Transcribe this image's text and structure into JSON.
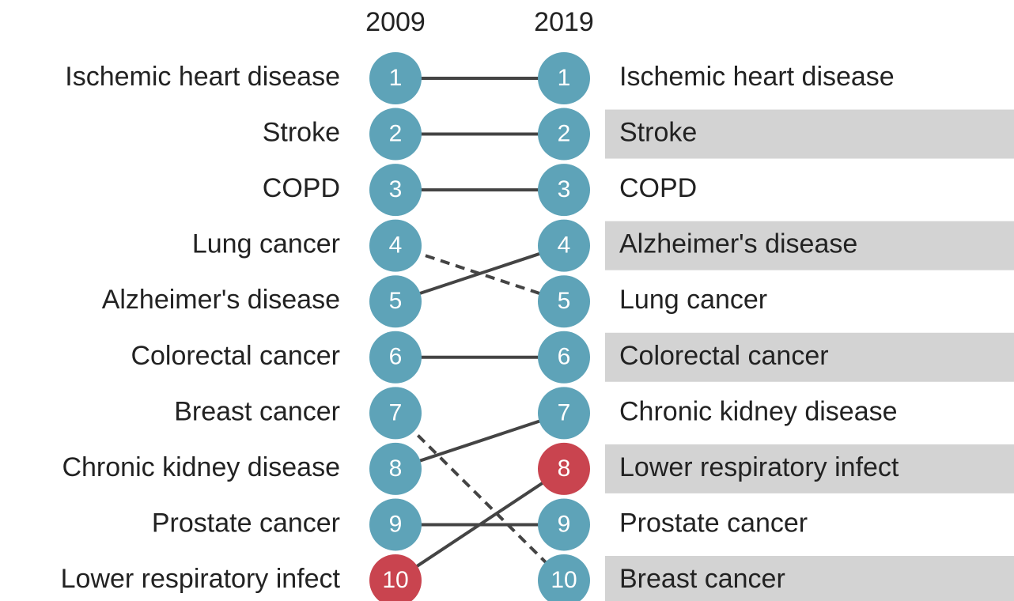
{
  "chart_data": {
    "type": "bump",
    "x": [
      "2009",
      "2019"
    ],
    "ylim": [
      1,
      10
    ],
    "y_reversed": true,
    "line_color": "#444444",
    "band_color": "#d3d3d3",
    "series": [
      {
        "name": "Ischemic heart disease",
        "color": "#5ea3b8",
        "values": [
          1,
          1
        ]
      },
      {
        "name": "Stroke",
        "color": "#5ea3b8",
        "values": [
          2,
          2
        ]
      },
      {
        "name": "COPD",
        "color": "#5ea3b8",
        "values": [
          3,
          3
        ]
      },
      {
        "name": "Lung cancer",
        "color": "#5ea3b8",
        "values": [
          4,
          5
        ]
      },
      {
        "name": "Alzheimer's disease",
        "color": "#5ea3b8",
        "values": [
          5,
          4
        ]
      },
      {
        "name": "Colorectal cancer",
        "color": "#5ea3b8",
        "values": [
          6,
          6
        ]
      },
      {
        "name": "Breast cancer",
        "color": "#5ea3b8",
        "values": [
          7,
          10
        ]
      },
      {
        "name": "Chronic kidney disease",
        "color": "#5ea3b8",
        "values": [
          8,
          7
        ]
      },
      {
        "name": "Prostate cancer",
        "color": "#5ea3b8",
        "values": [
          9,
          9
        ]
      },
      {
        "name": "Lower respiratory infect",
        "color": "#c9444f",
        "values": [
          10,
          8
        ]
      }
    ]
  }
}
